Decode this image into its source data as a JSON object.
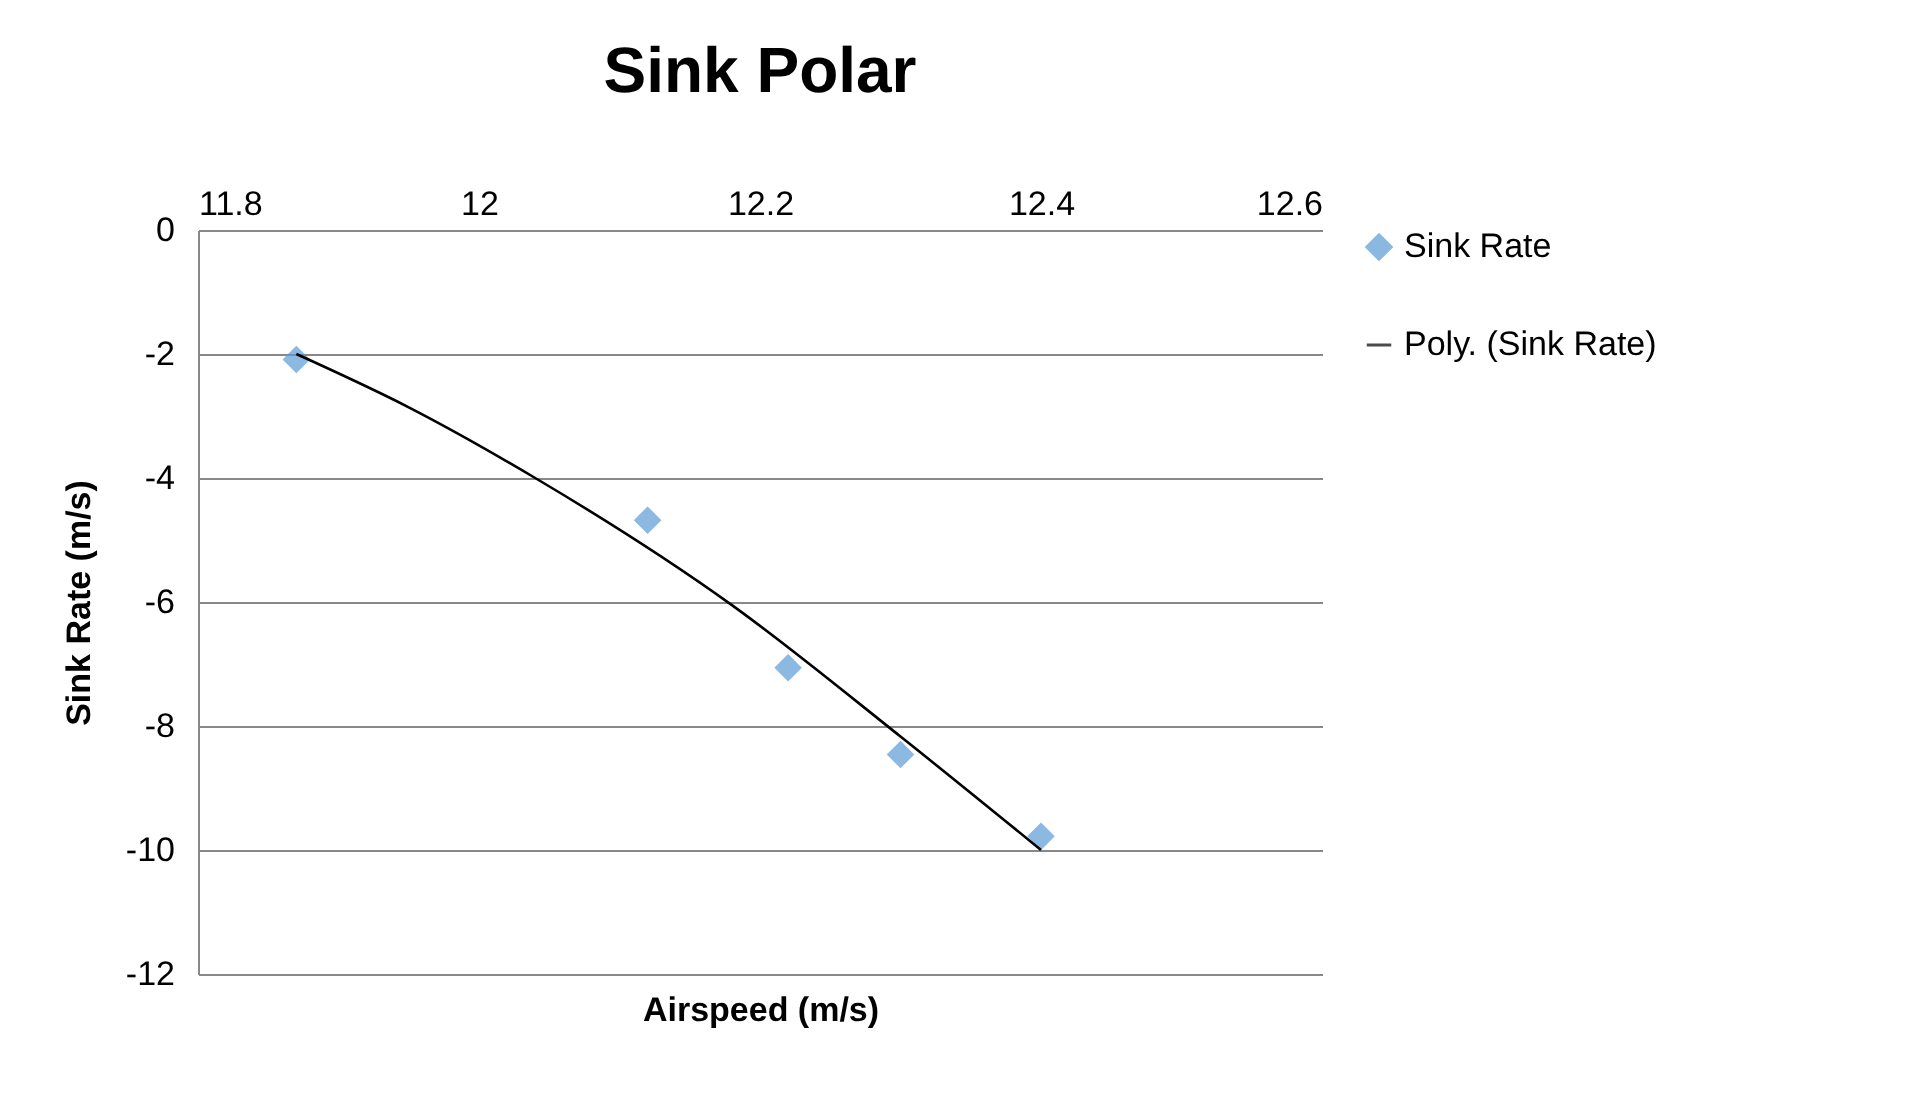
{
  "chart_data": {
    "type": "scatter",
    "title": "Sink Polar",
    "xlabel": "Airspeed (m/s)",
    "ylabel": "Sink Rate (m/s)",
    "xlim": [
      11.8,
      12.6
    ],
    "xticks": [
      11.8,
      12,
      12.2,
      12.4,
      12.6
    ],
    "ylim": [
      -12,
      0
    ],
    "yticks": [
      -12,
      -10,
      -8,
      -6,
      -4,
      -2,
      0
    ],
    "grid": "y",
    "legend": "right",
    "series": [
      {
        "name": "Sink Rate",
        "color": "#5b9bd5",
        "marker": "diamond",
        "x": [
          11.87,
          12.12,
          12.22,
          12.3,
          12.4
        ],
        "values": [
          -2.09,
          -4.68,
          -7.06,
          -8.46,
          -9.78
        ]
      },
      {
        "name": "Poly. (Sink Rate)",
        "type": "line",
        "color": "#000000",
        "line_style": "solid",
        "marker": "none",
        "x": [
          11.87,
          11.95,
          12.04,
          12.18,
          12.3,
          12.4
        ],
        "values": [
          -2.0,
          -2.86,
          -4.0,
          -6.05,
          -8.17,
          -10.0
        ]
      }
    ]
  }
}
